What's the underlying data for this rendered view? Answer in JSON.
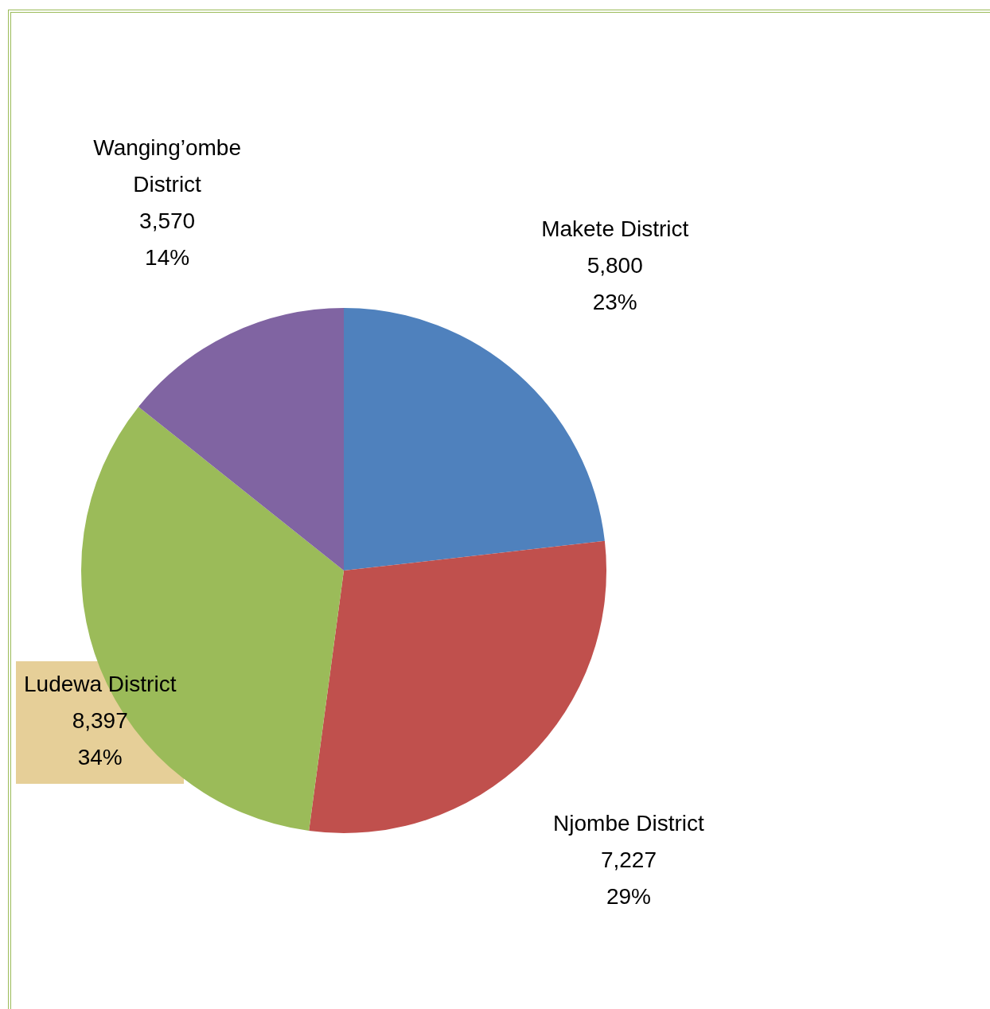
{
  "chart_data": {
    "type": "pie",
    "categories": [
      "Makete District",
      "Njombe District",
      "Ludewa District",
      "Wanging’ombe District"
    ],
    "values": [
      5800,
      7227,
      8397,
      3570
    ],
    "colors": [
      "#4f81bd",
      "#c0504d",
      "#9bbb59",
      "#8064a2"
    ],
    "value_labels": [
      "5,800\n23%",
      "7,227\n29%",
      "8,397\n34%",
      "3,570\n14%"
    ],
    "legend": false
  }
}
